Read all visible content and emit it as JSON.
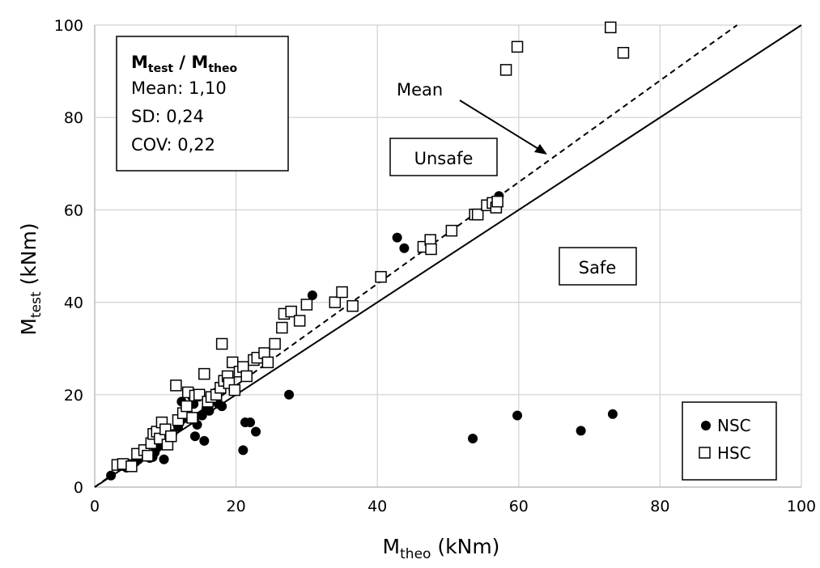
{
  "chart_data": {
    "type": "scatter",
    "xlabel": {
      "main": "M",
      "sub": "theo",
      "unit": " (kNm)"
    },
    "ylabel": {
      "main": "M",
      "sub": "test",
      "unit": " (kNm)"
    },
    "xlim": [
      0,
      100
    ],
    "ylim": [
      0,
      100
    ],
    "xticks": [
      "0",
      "20",
      "40",
      "60",
      "80",
      "100"
    ],
    "yticks": [
      "0",
      "20",
      "40",
      "60",
      "80",
      "100"
    ],
    "grid": true,
    "legend_position": "bottom-right",
    "stats_box": {
      "title_main_1": "M",
      "title_sub_1": "test",
      "title_sep": " / ",
      "title_main_2": "M",
      "title_sub_2": "theo",
      "mean_label": "Mean: 1,10",
      "sd_label": "SD: 0,24",
      "cov_label": "COV: 0,22"
    },
    "annotations": {
      "mean": "Mean",
      "unsafe": "Unsafe",
      "safe": "Safe"
    },
    "reference_lines": [
      {
        "type": "identity",
        "slope": 1.0,
        "style": "solid"
      },
      {
        "type": "mean",
        "slope": 1.1,
        "style": "dashed"
      }
    ],
    "series": [
      {
        "name": "NSC",
        "marker": "filled-circle",
        "color": "#000000",
        "points": [
          [
            2.3,
            2.5
          ],
          [
            4.5,
            4.2
          ],
          [
            5.0,
            5.0
          ],
          [
            5.8,
            5.5
          ],
          [
            6.2,
            6.0
          ],
          [
            6.8,
            6.8
          ],
          [
            7.2,
            7.0
          ],
          [
            7.8,
            6.3
          ],
          [
            8.2,
            6.5
          ],
          [
            8.5,
            7.5
          ],
          [
            8.8,
            8.5
          ],
          [
            9.2,
            9.0
          ],
          [
            9.8,
            6.0
          ],
          [
            10.2,
            9.8
          ],
          [
            10.5,
            10.5
          ],
          [
            11.0,
            11.5
          ],
          [
            11.8,
            13.0
          ],
          [
            12.0,
            14.0
          ],
          [
            12.3,
            18.5
          ],
          [
            12.8,
            15.0
          ],
          [
            13.2,
            16.0
          ],
          [
            13.8,
            19.5
          ],
          [
            14.0,
            18.0
          ],
          [
            14.2,
            11.0
          ],
          [
            14.5,
            13.5
          ],
          [
            14.8,
            20.0
          ],
          [
            15.2,
            15.5
          ],
          [
            15.5,
            10.0
          ],
          [
            15.8,
            17.0
          ],
          [
            16.2,
            16.5
          ],
          [
            16.8,
            19.0
          ],
          [
            17.2,
            20.5
          ],
          [
            17.5,
            18.0
          ],
          [
            18.0,
            17.5
          ],
          [
            21.0,
            8.0
          ],
          [
            21.3,
            14.0
          ],
          [
            22.0,
            14.0
          ],
          [
            22.8,
            12.0
          ],
          [
            27.5,
            20.0
          ],
          [
            30.8,
            41.5
          ],
          [
            42.8,
            54.0
          ],
          [
            43.8,
            51.7
          ],
          [
            53.5,
            10.5
          ],
          [
            57.2,
            63.0
          ],
          [
            59.8,
            15.5
          ],
          [
            68.8,
            12.2
          ],
          [
            73.3,
            15.8
          ]
        ]
      },
      {
        "name": "HSC",
        "marker": "open-square",
        "color": "#000000",
        "points": [
          [
            3.2,
            4.8
          ],
          [
            4.0,
            5.0
          ],
          [
            5.2,
            4.5
          ],
          [
            6.0,
            7.2
          ],
          [
            7.0,
            8.0
          ],
          [
            7.5,
            6.8
          ],
          [
            8.0,
            9.5
          ],
          [
            8.3,
            11.5
          ],
          [
            8.8,
            12.0
          ],
          [
            9.2,
            10.5
          ],
          [
            9.5,
            14.0
          ],
          [
            10.0,
            12.5
          ],
          [
            10.3,
            9.2
          ],
          [
            10.8,
            11.0
          ],
          [
            11.5,
            22.0
          ],
          [
            11.8,
            14.5
          ],
          [
            12.5,
            16.0
          ],
          [
            13.0,
            17.5
          ],
          [
            13.2,
            20.5
          ],
          [
            13.8,
            15.0
          ],
          [
            14.2,
            19.8
          ],
          [
            14.8,
            20.0
          ],
          [
            15.5,
            24.5
          ],
          [
            16.0,
            18.5
          ],
          [
            16.5,
            19.5
          ],
          [
            17.2,
            20.0
          ],
          [
            17.8,
            21.5
          ],
          [
            18.0,
            31.0
          ],
          [
            18.3,
            23.0
          ],
          [
            18.8,
            24.0
          ],
          [
            19.0,
            22.5
          ],
          [
            19.5,
            27.0
          ],
          [
            19.8,
            21.0
          ],
          [
            20.5,
            25.0
          ],
          [
            21.0,
            26.0
          ],
          [
            21.5,
            24.0
          ],
          [
            22.5,
            27.5
          ],
          [
            23.0,
            28.0
          ],
          [
            24.0,
            29.0
          ],
          [
            24.5,
            27.0
          ],
          [
            25.5,
            31.0
          ],
          [
            26.5,
            34.5
          ],
          [
            26.8,
            37.5
          ],
          [
            27.8,
            38.0
          ],
          [
            29.0,
            36.0
          ],
          [
            30.0,
            39.5
          ],
          [
            34.0,
            40.0
          ],
          [
            35.0,
            42.2
          ],
          [
            36.5,
            39.2
          ],
          [
            40.5,
            45.5
          ],
          [
            46.5,
            52.0
          ],
          [
            47.5,
            53.5
          ],
          [
            47.6,
            51.5
          ],
          [
            50.5,
            55.5
          ],
          [
            53.8,
            59.0
          ],
          [
            54.2,
            59.0
          ],
          [
            55.5,
            61.0
          ],
          [
            56.3,
            61.5
          ],
          [
            56.8,
            60.5
          ],
          [
            57.0,
            61.8
          ],
          [
            58.2,
            90.3
          ],
          [
            59.8,
            95.3
          ],
          [
            73.0,
            99.5
          ],
          [
            74.8,
            94.0
          ]
        ]
      }
    ]
  }
}
